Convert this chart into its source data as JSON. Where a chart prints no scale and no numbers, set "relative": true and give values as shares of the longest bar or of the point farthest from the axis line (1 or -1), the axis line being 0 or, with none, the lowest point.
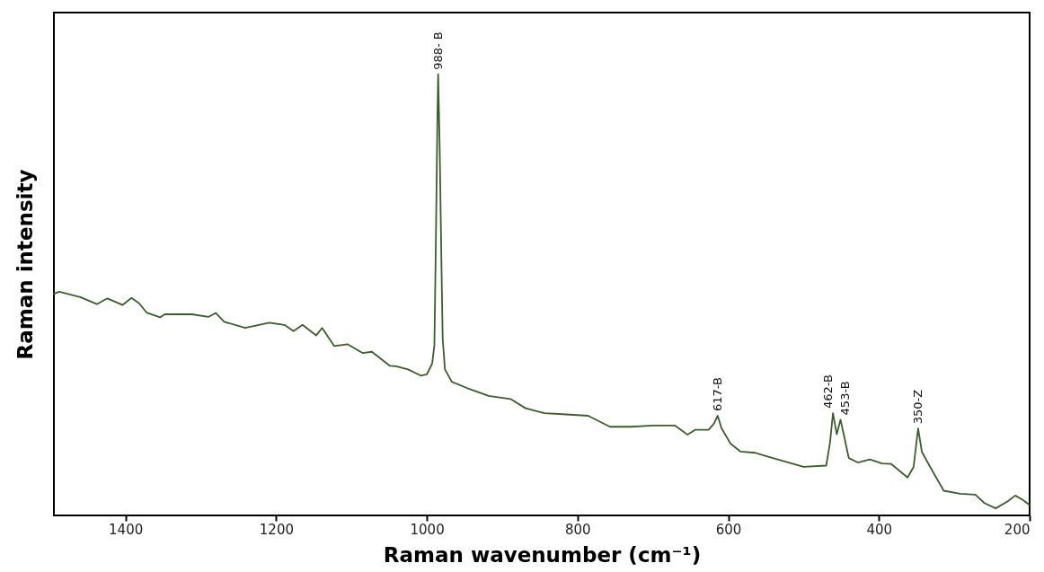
{
  "chart_data": {
    "type": "line",
    "relative": true,
    "xlabel": "Raman wavenumber (cm⁻¹)",
    "ylabel": "Raman intensity",
    "xlim": [
      1495,
      200
    ],
    "xticks": [
      1400,
      1200,
      1000,
      800,
      600,
      400,
      200
    ],
    "grid": false,
    "tick_labels": "x",
    "x": [
      1495,
      1488,
      1460,
      1438,
      1424,
      1404,
      1392,
      1382,
      1372,
      1354,
      1348,
      1312,
      1290,
      1280,
      1269,
      1241,
      1209,
      1189,
      1177,
      1165,
      1147,
      1139,
      1123,
      1105,
      1085,
      1073,
      1049,
      1041,
      1025,
      1008,
      1000,
      993,
      990,
      988,
      986,
      985,
      983,
      980.5,
      979,
      976,
      967,
      947,
      918,
      889,
      869,
      844,
      815,
      786,
      757,
      729,
      700,
      671,
      654,
      644,
      626,
      619,
      614,
      609,
      597,
      584,
      564,
      555,
      500,
      470,
      465,
      461,
      456,
      451,
      446,
      440,
      428,
      412,
      396,
      384,
      362,
      354,
      348,
      343,
      332,
      314,
      292,
      272,
      260,
      245,
      229,
      219,
      209,
      201
    ],
    "series": [
      {
        "color": "#3b5e2b",
        "values": [
          0.502,
          0.507,
          0.495,
          0.479,
          0.492,
          0.477,
          0.493,
          0.481,
          0.46,
          0.449,
          0.456,
          0.456,
          0.45,
          0.459,
          0.439,
          0.425,
          0.437,
          0.432,
          0.418,
          0.432,
          0.408,
          0.425,
          0.384,
          0.388,
          0.368,
          0.371,
          0.339,
          0.338,
          0.331,
          0.317,
          0.32,
          0.344,
          0.386,
          0.625,
          0.905,
          1.0,
          0.835,
          0.555,
          0.401,
          0.331,
          0.303,
          0.289,
          0.271,
          0.264,
          0.243,
          0.232,
          0.229,
          0.226,
          0.201,
          0.201,
          0.204,
          0.204,
          0.183,
          0.194,
          0.194,
          0.208,
          0.226,
          0.198,
          0.163,
          0.145,
          0.142,
          0.137,
          0.11,
          0.113,
          0.164,
          0.232,
          0.184,
          0.217,
          0.178,
          0.13,
          0.12,
          0.127,
          0.118,
          0.117,
          0.086,
          0.11,
          0.197,
          0.144,
          0.11,
          0.056,
          0.049,
          0.047,
          0.028,
          0.016,
          0.032,
          0.045,
          0.035,
          0.025
        ]
      }
    ],
    "annotations": [
      {
        "text": "988- B",
        "x": 985,
        "y": 1.0
      },
      {
        "text": "617-B",
        "x": 614,
        "y": 0.226
      },
      {
        "text": "462-B",
        "x": 461,
        "y": 0.232
      },
      {
        "text": "453-B",
        "x": 451,
        "y": 0.217
      },
      {
        "text": "350-Z",
        "x": 348,
        "y": 0.197
      }
    ]
  }
}
